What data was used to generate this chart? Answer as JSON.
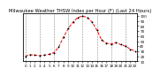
{
  "title": "Milwaukee Weather THSW Index per Hour (F) (Last 24 Hours)",
  "hours": [
    0,
    1,
    2,
    3,
    4,
    5,
    6,
    7,
    8,
    9,
    10,
    11,
    12,
    13,
    14,
    15,
    16,
    17,
    18,
    19,
    20,
    21,
    22,
    23
  ],
  "values": [
    20,
    23,
    22,
    21,
    22,
    24,
    27,
    38,
    58,
    75,
    88,
    97,
    100,
    97,
    88,
    72,
    52,
    46,
    44,
    47,
    43,
    40,
    34,
    30
  ],
  "ylim": [
    10,
    105
  ],
  "yticks": [
    10,
    20,
    30,
    40,
    50,
    60,
    70,
    80,
    90,
    100
  ],
  "ytick_labels": [
    "10",
    "20",
    "30",
    "40",
    "50",
    "60",
    "70",
    "80",
    "90",
    "100"
  ],
  "line_color": "#ff0000",
  "marker_color": "#000000",
  "bg_color": "#ffffff",
  "grid_color": "#808080",
  "title_fontsize": 3.8,
  "tick_fontsize": 3.0,
  "vline_hours": [
    0,
    3,
    6,
    9,
    12,
    15,
    18,
    21
  ],
  "xtick_labels": [
    "0",
    "1",
    "2",
    "3",
    "4",
    "5",
    "6",
    "7",
    "8",
    "9",
    "10",
    "11",
    "12",
    "13",
    "14",
    "15",
    "16",
    "17",
    "18",
    "19",
    "20",
    "21",
    "22",
    "23"
  ]
}
